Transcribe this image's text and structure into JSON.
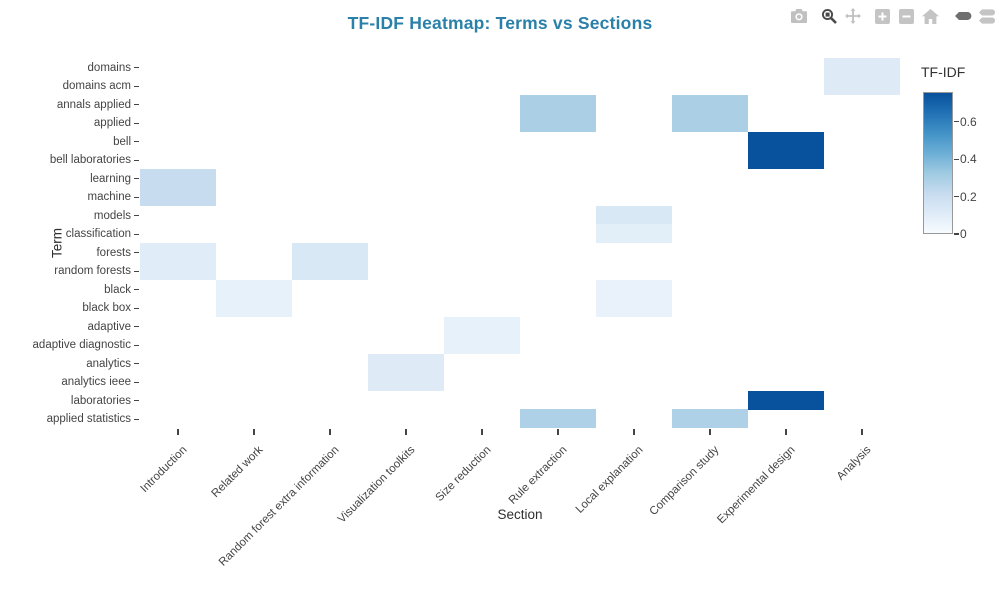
{
  "title": "TF-IDF Heatmap: Terms vs Sections",
  "modebar": {
    "icons": [
      "camera",
      "zoom",
      "pan",
      "zoom-in",
      "zoom-out",
      "home",
      "hover-closest",
      "hover-compare"
    ]
  },
  "chart_data": {
    "type": "heatmap",
    "title": "TF-IDF Heatmap: Terms vs Sections",
    "xlabel": "Section",
    "ylabel": "Term",
    "x": [
      "Introduction",
      "Related work",
      "Random forest extra information",
      "Visualization toolkits",
      "Size reduction",
      "Rule extraction",
      "Local explanation",
      "Comparison study",
      "Experimental design",
      "Analysis"
    ],
    "y": [
      "domains",
      "domains acm",
      "annals applied",
      "applied",
      "bell",
      "bell laboratories",
      "learning",
      "machine",
      "models",
      "classification",
      "forests",
      "random forests",
      "black",
      "black box",
      "adaptive",
      "adaptive diagnostic",
      "analytics",
      "analytics ieee",
      "laboratories",
      "applied statistics"
    ],
    "z": [
      [
        0,
        0,
        0,
        0,
        0,
        0,
        0,
        0,
        0,
        0.11
      ],
      [
        0,
        0,
        0,
        0,
        0,
        0,
        0,
        0,
        0,
        0.11
      ],
      [
        0,
        0,
        0,
        0,
        0,
        0.29,
        0,
        0.29,
        0,
        0
      ],
      [
        0,
        0,
        0,
        0,
        0,
        0.29,
        0,
        0.29,
        0,
        0
      ],
      [
        0,
        0,
        0,
        0,
        0,
        0,
        0,
        0,
        0.76,
        0
      ],
      [
        0,
        0,
        0,
        0,
        0,
        0,
        0,
        0,
        0.76,
        0
      ],
      [
        0.21,
        0,
        0,
        0,
        0,
        0,
        0,
        0,
        0,
        0
      ],
      [
        0.21,
        0,
        0,
        0,
        0,
        0,
        0,
        0,
        0,
        0
      ],
      [
        0,
        0,
        0,
        0,
        0,
        0,
        0.13,
        0,
        0,
        0
      ],
      [
        0,
        0,
        0,
        0,
        0,
        0,
        0.09,
        0,
        0,
        0
      ],
      [
        0.1,
        0,
        0.13,
        0,
        0,
        0,
        0,
        0,
        0,
        0
      ],
      [
        0.1,
        0,
        0.13,
        0,
        0,
        0,
        0,
        0,
        0,
        0
      ],
      [
        0,
        0.07,
        0,
        0,
        0,
        0,
        0.06,
        0,
        0,
        0
      ],
      [
        0,
        0.07,
        0,
        0,
        0,
        0,
        0.06,
        0,
        0,
        0
      ],
      [
        0,
        0,
        0,
        0,
        0.07,
        0,
        0,
        0,
        0,
        0
      ],
      [
        0,
        0,
        0,
        0,
        0.07,
        0,
        0,
        0,
        0,
        0
      ],
      [
        0,
        0,
        0,
        0.11,
        0,
        0,
        0,
        0,
        0,
        0
      ],
      [
        0,
        0,
        0,
        0.11,
        0,
        0,
        0,
        0,
        0,
        0
      ],
      [
        0,
        0,
        0,
        0,
        0,
        0,
        0,
        0,
        0.76,
        0
      ],
      [
        0,
        0,
        0,
        0,
        0,
        0.28,
        0,
        0.28,
        0,
        0
      ]
    ],
    "zmin": 0,
    "zmax": 0.76,
    "colorbar": {
      "title": "TF-IDF",
      "ticks": [
        0,
        0.2,
        0.4,
        0.6
      ]
    },
    "colorscale": [
      [
        0,
        "#f7fbff"
      ],
      [
        0.143,
        "#deebf7"
      ],
      [
        0.286,
        "#c6dbef"
      ],
      [
        0.429,
        "#9ecae1"
      ],
      [
        0.571,
        "#6baed6"
      ],
      [
        0.714,
        "#4292c6"
      ],
      [
        0.857,
        "#2171b5"
      ],
      [
        1,
        "#08519c"
      ]
    ],
    "grid": false,
    "legend_position": "right"
  },
  "colors": {
    "title": "#2a80a8",
    "tick_label": "#444444",
    "axis_title": "#2e2e2e",
    "cell_max": "#08519c",
    "cell_min": "#f7fbff",
    "modebar_inactive": "#c0c0c0",
    "modebar_active": "#4a4a4a",
    "modebar_semi": "#6f6f6f"
  }
}
